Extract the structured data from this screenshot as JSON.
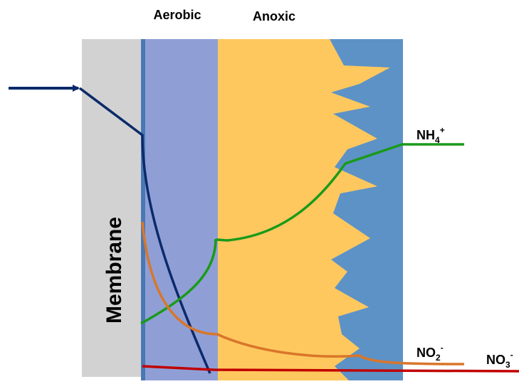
{
  "zones": {
    "aerobic": "Aerobic",
    "anoxic": "Anoxic",
    "membrane": "Membrane"
  },
  "species": [
    {
      "base": "NH",
      "sub": "4",
      "sup": "+"
    },
    {
      "base": "NO",
      "sub": "2",
      "sup": "-"
    },
    {
      "base": "NO",
      "sub": "3",
      "sup": "-"
    }
  ]
}
